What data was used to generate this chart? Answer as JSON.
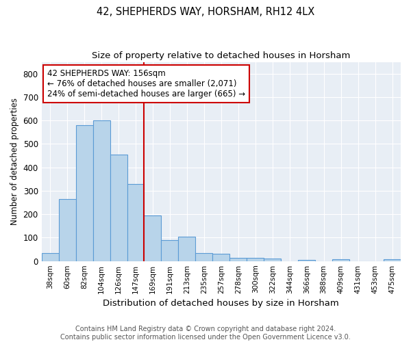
{
  "title": "42, SHEPHERDS WAY, HORSHAM, RH12 4LX",
  "subtitle": "Size of property relative to detached houses in Horsham",
  "xlabel": "Distribution of detached houses by size in Horsham",
  "ylabel": "Number of detached properties",
  "categories": [
    "38sqm",
    "60sqm",
    "82sqm",
    "104sqm",
    "126sqm",
    "147sqm",
    "169sqm",
    "191sqm",
    "213sqm",
    "235sqm",
    "257sqm",
    "278sqm",
    "300sqm",
    "322sqm",
    "344sqm",
    "366sqm",
    "388sqm",
    "409sqm",
    "431sqm",
    "453sqm",
    "475sqm"
  ],
  "values": [
    35,
    265,
    580,
    600,
    455,
    330,
    195,
    90,
    103,
    35,
    30,
    15,
    15,
    11,
    0,
    5,
    0,
    7,
    0,
    0,
    7
  ],
  "bar_color": "#b8d4ea",
  "bar_edgecolor": "#5b9bd5",
  "vline_x_index": 6,
  "vline_color": "#cc0000",
  "annotation_line1": "42 SHEPHERDS WAY: 156sqm",
  "annotation_line2": "← 76% of detached houses are smaller (2,071)",
  "annotation_line3": "24% of semi-detached houses are larger (665) →",
  "annotation_box_edgecolor": "#cc0000",
  "annotation_box_facecolor": "#ffffff",
  "ylim": [
    0,
    850
  ],
  "yticks": [
    0,
    100,
    200,
    300,
    400,
    500,
    600,
    700,
    800
  ],
  "footer": "Contains HM Land Registry data © Crown copyright and database right 2024.\nContains public sector information licensed under the Open Government Licence v3.0.",
  "fig_bg_color": "#ffffff",
  "plot_bg_color": "#e8eef5",
  "grid_color": "#ffffff",
  "title_fontsize": 10.5,
  "subtitle_fontsize": 9.5,
  "footer_fontsize": 7.0,
  "annotation_fontsize": 8.5,
  "ylabel_fontsize": 8.5,
  "xlabel_fontsize": 9.5
}
